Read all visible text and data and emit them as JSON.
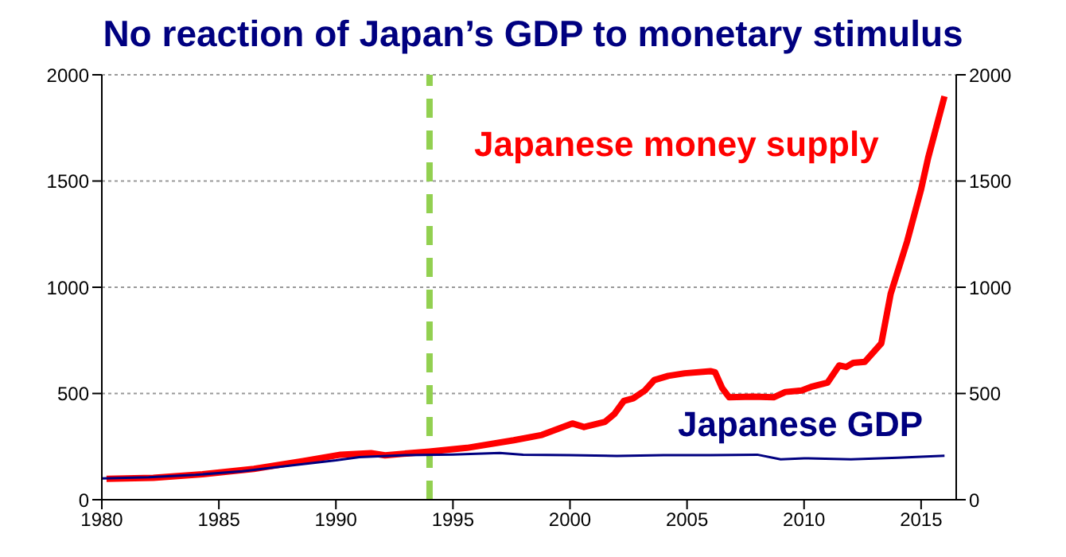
{
  "chart_data": {
    "type": "line",
    "title": "No reaction of Japan’s GDP to monetary stimulus",
    "xlim": [
      1980,
      2016.5
    ],
    "xticks": [
      1980,
      1985,
      1990,
      1995,
      2000,
      2005,
      2010,
      2015
    ],
    "ylim": [
      0,
      2000
    ],
    "yticks": [
      0,
      500,
      1000,
      1500,
      2000
    ],
    "y2lim": [
      0,
      2000
    ],
    "y2ticks": [
      0,
      500,
      1000,
      1500,
      2000
    ],
    "grid": "y",
    "legend": false,
    "marker": "none",
    "line_style": "solid",
    "ref_lines": [
      {
        "axis": "x",
        "value": 1994,
        "color": "#92d050",
        "line_style": "dashed"
      }
    ],
    "series": [
      {
        "name": "Japanese money supply",
        "color": "#ff0000",
        "x": [
          1980.2,
          1982.2,
          1984.3,
          1986.5,
          1988.6,
          1990.2,
          1991.5,
          1992.1,
          1994.0,
          1995.6,
          1997.6,
          1998.8,
          2000.1,
          2000.6,
          2001.5,
          2001.9,
          2002.3,
          2002.7,
          2003.2,
          2003.6,
          2004.2,
          2004.9,
          2006.0,
          2006.2,
          2006.5,
          2006.8,
          2007.8,
          2008.7,
          2009.2,
          2009.9,
          2010.3,
          2011.0,
          2011.5,
          2011.8,
          2012.1,
          2012.6,
          2013.3,
          2013.7,
          2014.4,
          2015.0,
          2015.3,
          2016.0
        ],
        "values": [
          98,
          103,
          120,
          145,
          182,
          212,
          219,
          209,
          227,
          244,
          280,
          305,
          359,
          342,
          367,
          404,
          465,
          477,
          514,
          563,
          583,
          595,
          605,
          600,
          526,
          482,
          485,
          482,
          507,
          514,
          531,
          551,
          632,
          625,
          644,
          649,
          736,
          969,
          1215,
          1461,
          1609,
          1899
        ]
      },
      {
        "name": "Japanese GDP",
        "color": "#000080",
        "x": [
          1980,
          1982,
          1984,
          1986,
          1988,
          1990,
          1991,
          1993,
          1995,
          1997,
          1998,
          2000,
          2002,
          2004,
          2006,
          2008,
          2009,
          2010,
          2012,
          2014,
          2016
        ],
        "values": [
          100,
          106,
          117,
          134,
          160,
          185,
          200,
          210,
          213,
          220,
          212,
          210,
          206,
          210,
          210,
          212,
          190,
          195,
          190,
          198,
          207
        ]
      }
    ]
  }
}
